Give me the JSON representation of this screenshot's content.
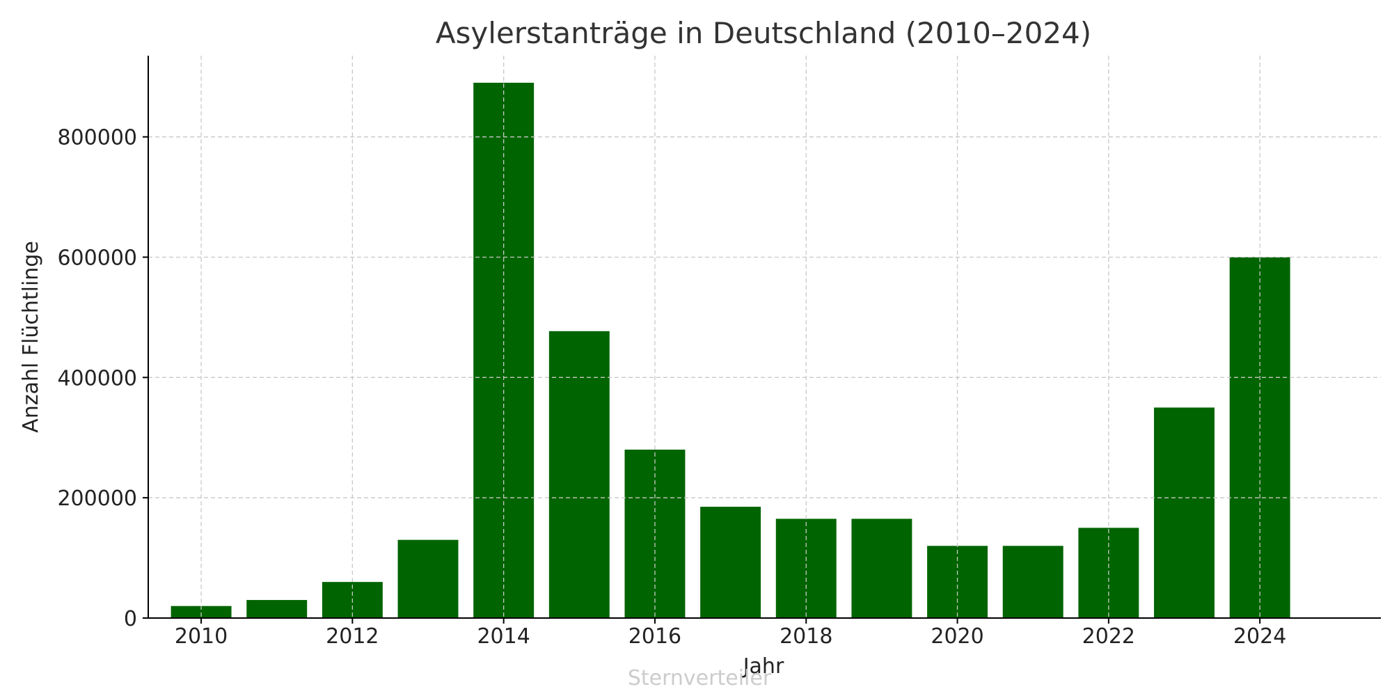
{
  "chart_data": {
    "type": "bar",
    "title": "Asylerstanträge in Deutschland (2010–2024)",
    "xlabel": "Jahr",
    "ylabel": "Anzahl Flüchtlinge",
    "categories": [
      2010,
      2011,
      2012,
      2013,
      2014,
      2015,
      2016,
      2017,
      2018,
      2019,
      2020,
      2021,
      2022,
      2023,
      2024
    ],
    "values": [
      20000,
      30000,
      60000,
      130000,
      890000,
      477000,
      280000,
      185000,
      165000,
      165000,
      120000,
      120000,
      150000,
      350000,
      600000
    ],
    "x_ticks": [
      "2010",
      "2012",
      "2014",
      "2016",
      "2018",
      "2020",
      "2022",
      "2024"
    ],
    "y_ticks": [
      "0",
      "200000",
      "400000",
      "600000",
      "800000"
    ],
    "ylim": [
      0,
      935000
    ],
    "xlim": [
      2009.3,
      2025.6
    ],
    "grid": true,
    "bar_color": "#006400",
    "watermark": "Sternverteiler"
  }
}
